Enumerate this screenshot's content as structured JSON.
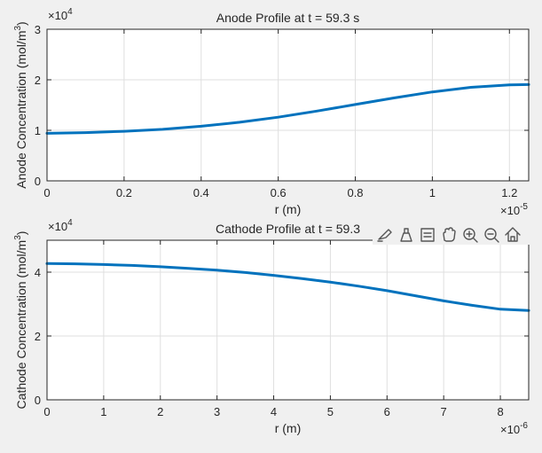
{
  "colors": {
    "figure_bg": "#f0f0f0",
    "axes_bg": "#ffffff",
    "line": "#0072bd",
    "grid": "#dfdfdf",
    "axis": "#262626",
    "toolbar_icon": "#555555"
  },
  "toolbar": {
    "icons": [
      "brush-icon",
      "data-tips-icon",
      "restore-view-icon",
      "pan-hand-icon",
      "zoom-in-icon",
      "zoom-out-icon",
      "home-icon"
    ]
  },
  "chart_data": [
    {
      "type": "line",
      "title": "Anode Profile at t = 59.3 s",
      "xlabel": "r (m)",
      "ylabel": "Anode Concentration (mol/m",
      "ylabel_superscript": "3",
      "ylabel_close": ")",
      "x_exponent_base": "×10",
      "x_exponent": "-5",
      "y_exponent_base": "×10",
      "y_exponent": "4",
      "xlim": [
        0,
        1.25
      ],
      "ylim": [
        0,
        3
      ],
      "xticks": [
        0,
        0.2,
        0.4,
        0.6,
        0.8,
        1,
        1.2
      ],
      "xtick_labels": [
        "0",
        "0.2",
        "0.4",
        "0.6",
        "0.8",
        "1",
        "1.2"
      ],
      "yticks": [
        0,
        1,
        2,
        3
      ],
      "ytick_labels": [
        "0",
        "1",
        "2",
        "3"
      ],
      "grid": true,
      "series": [
        {
          "color": "#0072bd",
          "x": [
            0,
            0.1,
            0.2,
            0.3,
            0.4,
            0.5,
            0.6,
            0.7,
            0.8,
            0.9,
            1.0,
            1.1,
            1.2,
            1.25
          ],
          "y": [
            0.94,
            0.955,
            0.98,
            1.02,
            1.08,
            1.16,
            1.26,
            1.38,
            1.51,
            1.64,
            1.76,
            1.85,
            1.9,
            1.905
          ]
        }
      ]
    },
    {
      "type": "line",
      "title": "Cathode Profile at t = 59.3",
      "xlabel": "r (m)",
      "ylabel": "Cathode Concentration (mol/m",
      "ylabel_superscript": "3",
      "ylabel_close": ")",
      "x_exponent_base": "×10",
      "x_exponent": "-6",
      "y_exponent_base": "×10",
      "y_exponent": "4",
      "xlim": [
        0,
        8.5
      ],
      "ylim": [
        0,
        5
      ],
      "xticks": [
        0,
        1,
        2,
        3,
        4,
        5,
        6,
        7,
        8
      ],
      "xtick_labels": [
        "0",
        "1",
        "2",
        "3",
        "4",
        "5",
        "6",
        "7",
        "8"
      ],
      "yticks": [
        0,
        2,
        4
      ],
      "ytick_labels": [
        "0",
        "2",
        "4"
      ],
      "grid": true,
      "series": [
        {
          "color": "#0072bd",
          "x": [
            0,
            0.5,
            1,
            1.5,
            2,
            2.5,
            3,
            3.5,
            4,
            4.5,
            5,
            5.5,
            6,
            6.5,
            7,
            7.5,
            8,
            8.5
          ],
          "y": [
            4.27,
            4.26,
            4.24,
            4.21,
            4.17,
            4.12,
            4.06,
            3.99,
            3.9,
            3.8,
            3.69,
            3.56,
            3.42,
            3.26,
            3.1,
            2.96,
            2.84,
            2.8
          ]
        }
      ]
    }
  ]
}
